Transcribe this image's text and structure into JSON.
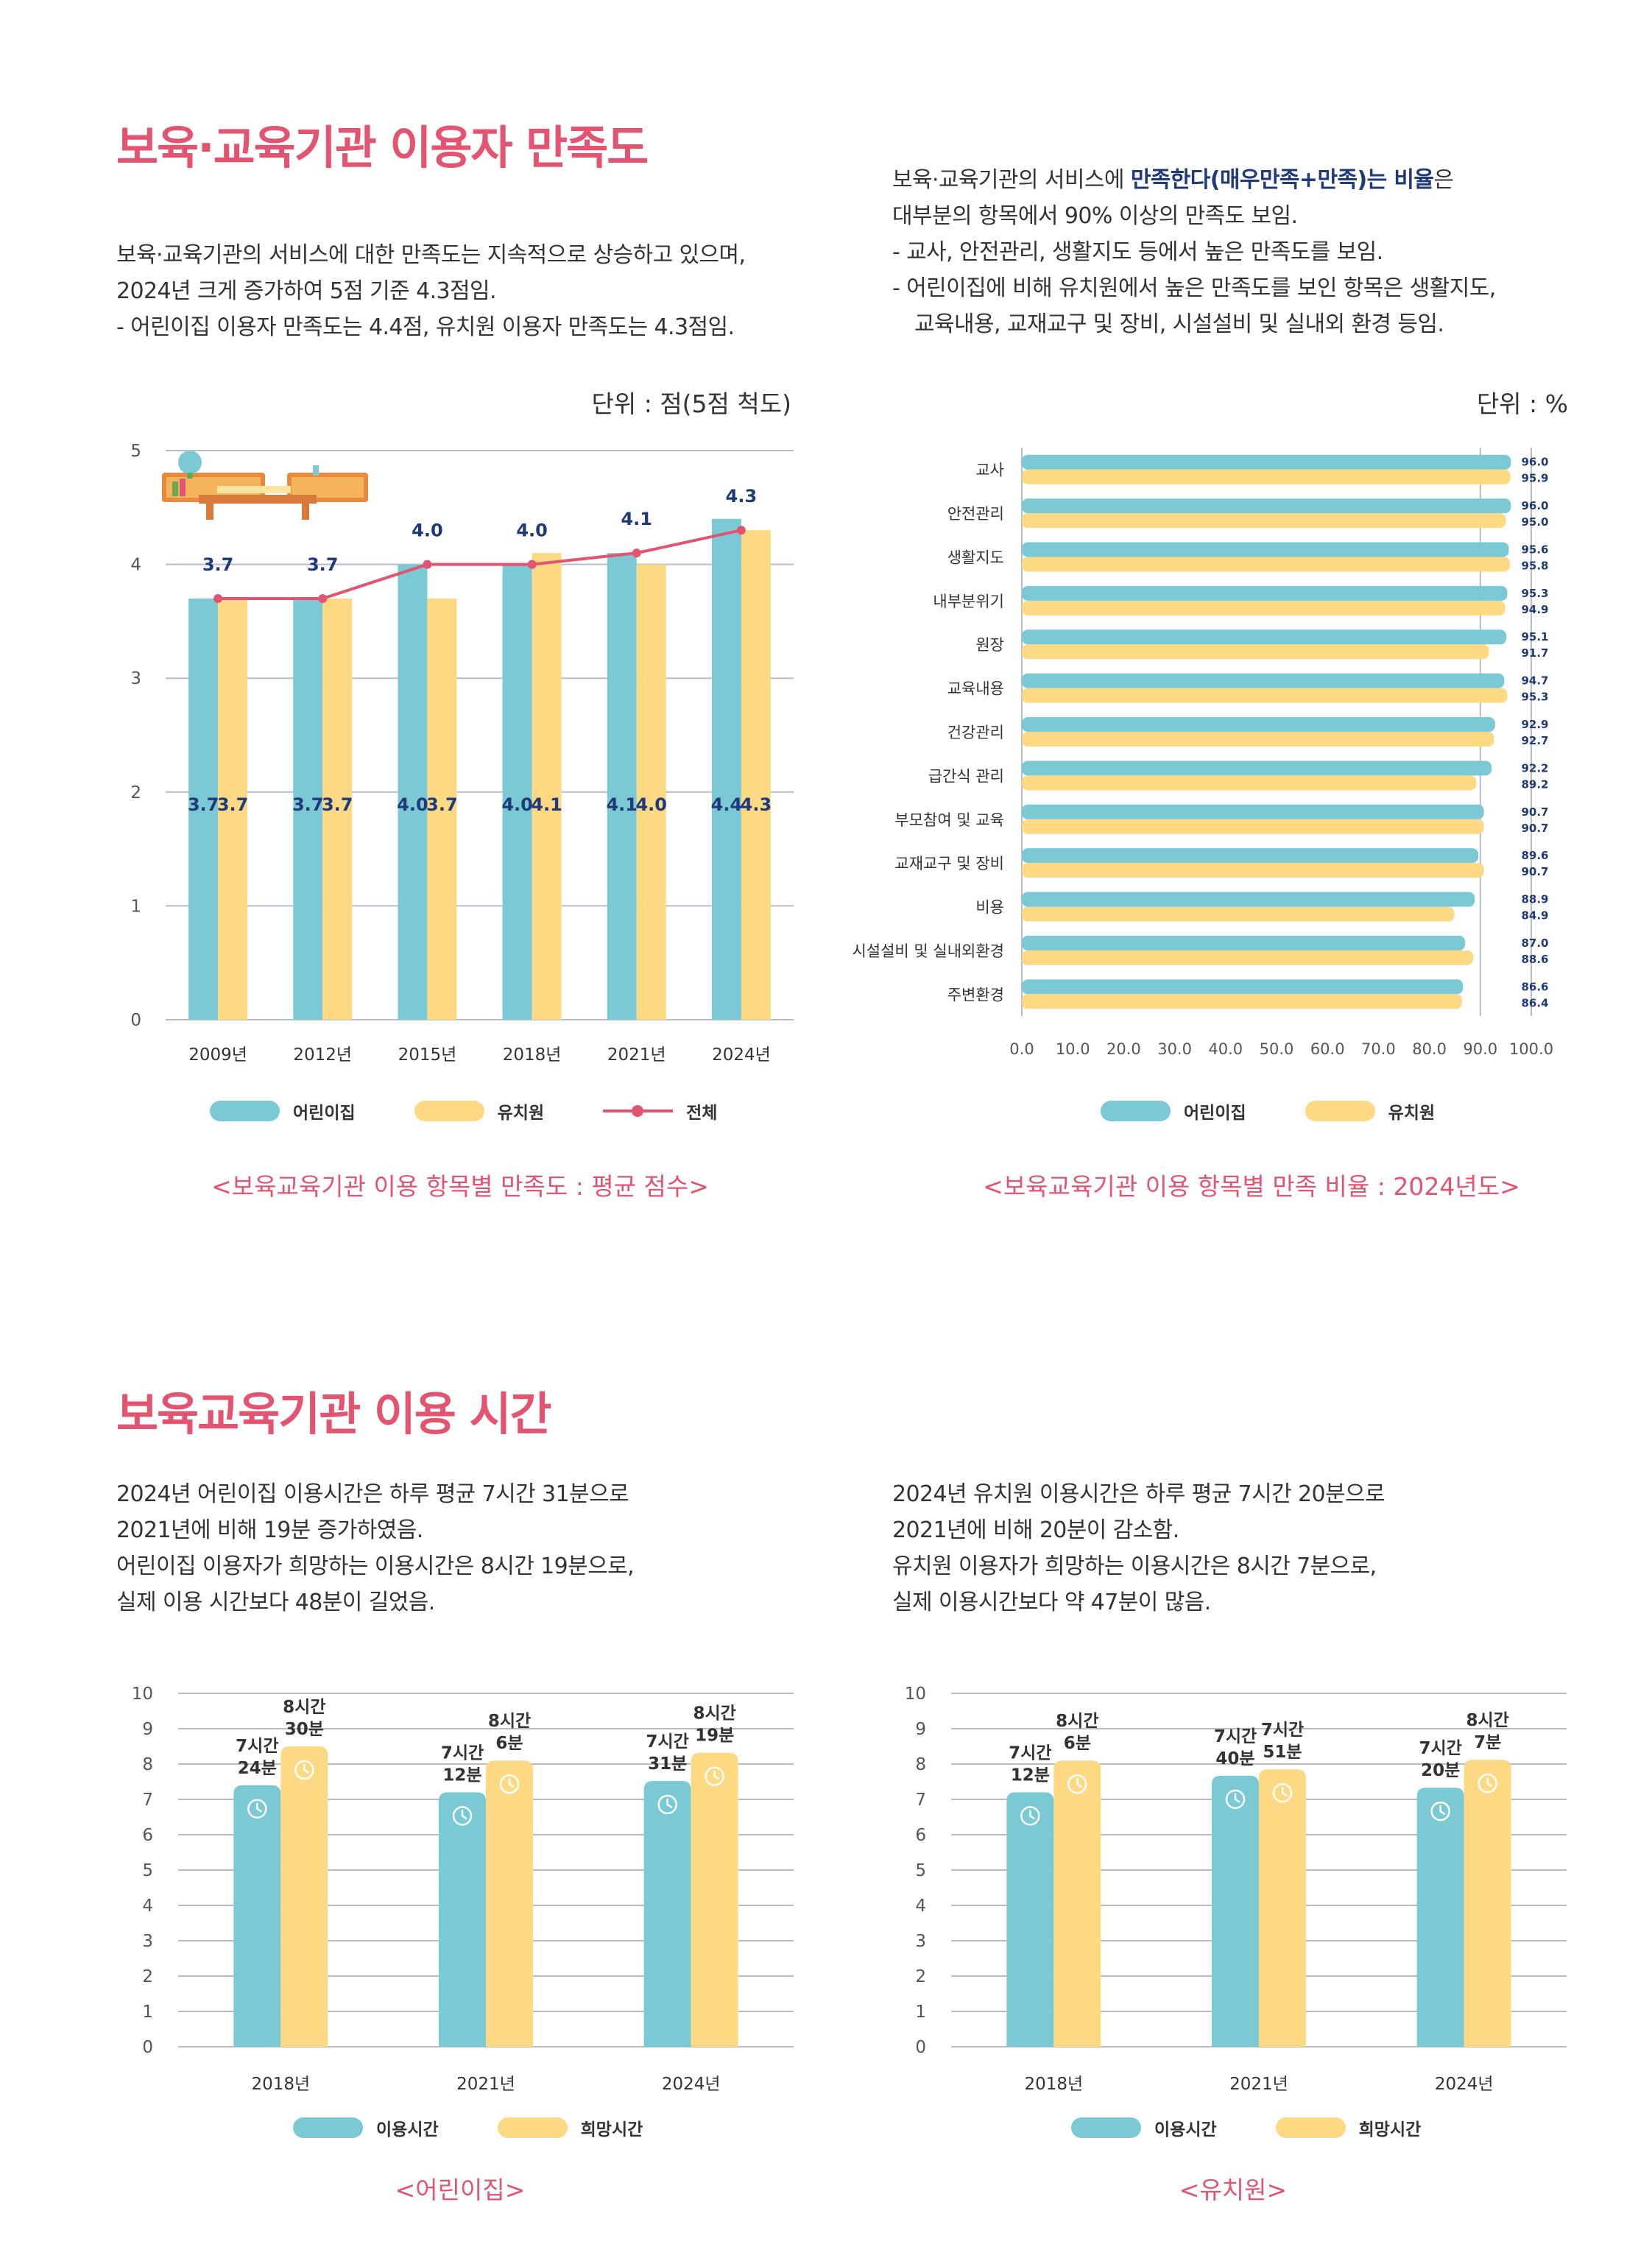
{
  "colors": {
    "accent": "#e2546f",
    "daycare": "#7ac9d4",
    "kinder": "#fdd983",
    "line": "#e2546f",
    "navy": "#1f3a7a",
    "grid": "#b6bcc8"
  },
  "section1": {
    "title": "보육·교육기관 이용자 만족도",
    "left_text": [
      "보육·교육기관의 서비스에 대한 만족도는 지속적으로 상승하고 있으며,",
      "2024년 크게 증가하여 5점 기준 4.3점임.",
      "- 어린이집 이용자 만족도는 4.4점, 유치원 이용자 만족도는 4.3점임."
    ],
    "right_text": {
      "l1a": "보육·교육기관의 서비스에 ",
      "l1b": "만족한다(매우만족+만족)는 비율",
      "l1c": "은",
      "l2": "대부분의 항목에서 90% 이상의 만족도 보임.",
      "l3": "- 교사, 안전관리, 생활지도 등에서 높은 만족도를 보임.",
      "l4": "- 어린이집에 비해 유치원에서 높은 만족도를 보인 항목은 생활지도,",
      "l5": "교육내용, 교재교구 및 장비, 시설설비 및 실내외 환경 등임."
    }
  },
  "section2": {
    "title": "보육교육기관 이용 시간",
    "left_text": [
      "2024년 어린이집 이용시간은 하루 평균 7시간 31분으로",
      "2021년에 비해 19분 증가하였음.",
      "어린이집 이용자가 희망하는 이용시간은 8시간 19분으로,",
      "실제 이용 시간보다 48분이 길었음."
    ],
    "right_text": [
      "2024년 유치원 이용시간은 하루 평균 7시간 20분으로",
      "2021년에 비해 20분이 감소함.",
      "유치원 이용자가 희망하는 이용시간은 8시간 7분으로,",
      "실제 이용시간보다 약 47분이 많음."
    ]
  },
  "chart_data": [
    {
      "type": "bar",
      "caption": "<보육교육기관 이용 항목별 만족도 : 평균 점수>",
      "unit": "단위 : 점(5점 척도)",
      "categories": [
        "2009년",
        "2012년",
        "2015년",
        "2018년",
        "2021년",
        "2024년"
      ],
      "series": [
        {
          "name": "어린이집",
          "values": [
            3.7,
            3.7,
            4.0,
            4.0,
            4.1,
            4.4
          ]
        },
        {
          "name": "유치원",
          "values": [
            3.7,
            3.7,
            3.7,
            4.1,
            4.0,
            4.3
          ]
        },
        {
          "name": "전체",
          "type": "line",
          "values": [
            3.7,
            3.7,
            4.0,
            4.0,
            4.1,
            4.3
          ]
        }
      ],
      "ylim": [
        0,
        5
      ],
      "yticks": [
        0,
        1,
        2,
        3,
        4,
        5
      ],
      "grid": true,
      "legend": "bottom"
    },
    {
      "type": "bar",
      "orientation": "horizontal",
      "caption": "<보육교육기관 이용 항목별 만족 비율 : 2024년도>",
      "unit": "단위 : %",
      "categories": [
        "교사",
        "안전관리",
        "생활지도",
        "내부분위기",
        "원장",
        "교육내용",
        "건강관리",
        "급간식 관리",
        "부모참여 및 교육",
        "교재교구 및 장비",
        "비용",
        "시설설비 및 실내외환경",
        "주변환경"
      ],
      "series": [
        {
          "name": "어린이집",
          "values": [
            96.0,
            96.0,
            95.6,
            95.3,
            95.1,
            94.7,
            92.9,
            92.2,
            90.7,
            89.6,
            88.9,
            87.0,
            86.6
          ]
        },
        {
          "name": "유치원",
          "values": [
            95.9,
            95.0,
            95.8,
            94.9,
            91.7,
            95.3,
            92.7,
            89.2,
            90.7,
            90.7,
            84.9,
            88.6,
            86.4
          ]
        }
      ],
      "xlim": [
        0,
        100
      ],
      "xticks": [
        "0.0",
        "10.0",
        "20.0",
        "30.0",
        "40.0",
        "50.0",
        "60.0",
        "70.0",
        "80.0",
        "90.0",
        "100.0"
      ],
      "legend": "bottom"
    },
    {
      "type": "bar",
      "caption": "<어린이집>",
      "categories": [
        "2018년",
        "2021년",
        "2024년"
      ],
      "series": [
        {
          "name": "이용시간",
          "values": [
            7.4,
            7.2,
            7.52
          ],
          "labels": [
            "7시간\n24분",
            "7시간\n12분",
            "7시간\n31분"
          ]
        },
        {
          "name": "희망시간",
          "values": [
            8.5,
            8.1,
            8.32
          ],
          "labels": [
            "8시간\n30분",
            "8시간\n6분",
            "8시간\n19분"
          ]
        }
      ],
      "ylim": [
        0,
        10
      ],
      "yticks": [
        0,
        1,
        2,
        3,
        4,
        5,
        6,
        7,
        8,
        9,
        10
      ],
      "legend": "bottom"
    },
    {
      "type": "bar",
      "caption": "<유치원>",
      "categories": [
        "2018년",
        "2021년",
        "2024년"
      ],
      "series": [
        {
          "name": "이용시간",
          "values": [
            7.2,
            7.67,
            7.33
          ],
          "labels": [
            "7시간\n12분",
            "7시간\n40분",
            "7시간\n20분"
          ]
        },
        {
          "name": "희망시간",
          "values": [
            8.1,
            7.85,
            8.12
          ],
          "labels": [
            "8시간\n6분",
            "7시간\n51분",
            "8시간\n7분"
          ]
        }
      ],
      "ylim": [
        0,
        10
      ],
      "yticks": [
        0,
        1,
        2,
        3,
        4,
        5,
        6,
        7,
        8,
        9,
        10
      ],
      "legend": "bottom"
    }
  ]
}
